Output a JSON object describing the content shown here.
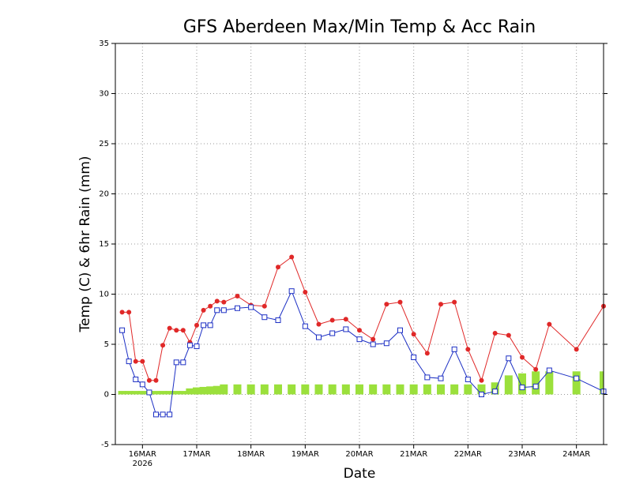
{
  "chart_data": {
    "type": "line",
    "title": "GFS Aberdeen Max/Min Temp & Acc Rain",
    "ylabel": "Temp (C) & 6hr Rain (mm)",
    "xlabel": "Date",
    "x_sublabel": "2026",
    "x": [
      -0.375,
      -0.25,
      -0.125,
      0,
      0.125,
      0.25,
      0.375,
      0.5,
      0.625,
      0.75,
      0.875,
      1,
      1.125,
      1.25,
      1.375,
      1.5,
      1.75,
      2,
      2.25,
      2.5,
      2.75,
      3,
      3.25,
      3.5,
      3.75,
      4,
      4.25,
      4.5,
      4.75,
      5,
      5.25,
      5.5,
      5.75,
      6,
      6.25,
      6.5,
      6.75,
      7,
      7.25,
      7.5,
      8,
      8.5
    ],
    "series": [
      {
        "style": "bar",
        "color": "#9be03c",
        "values": [
          0.35,
          0.35,
          0.35,
          0.35,
          0.35,
          0.35,
          0.35,
          0.35,
          0.35,
          0.35,
          0.6,
          0.7,
          0.75,
          0.8,
          0.85,
          1.0,
          1.0,
          1.0,
          1.0,
          1.0,
          1.0,
          1.0,
          1.0,
          1.0,
          1.0,
          1.0,
          1.0,
          1.0,
          1.0,
          1.0,
          1.0,
          1.0,
          1.0,
          1.0,
          1.0,
          1.2,
          1.9,
          2.1,
          2.3,
          2.3,
          2.3,
          2.3
        ]
      },
      {
        "style": "line",
        "marker": "circle",
        "color": "#e02828",
        "values": [
          8.2,
          8.2,
          3.3,
          3.3,
          1.4,
          1.4,
          4.9,
          6.6,
          6.4,
          6.4,
          5.2,
          6.9,
          8.4,
          8.8,
          9.3,
          9.2,
          9.8,
          8.9,
          8.8,
          12.7,
          13.7,
          10.2,
          7.0,
          7.4,
          7.5,
          6.4,
          5.5,
          9.0,
          9.2,
          6.0,
          4.1,
          9.0,
          9.2,
          4.5,
          1.4,
          6.1,
          5.9,
          3.7,
          2.5,
          7.0,
          4.5,
          8.8
        ]
      },
      {
        "style": "line",
        "marker": "square",
        "color": "#1c2fc4",
        "values": [
          6.4,
          3.3,
          1.5,
          1.0,
          0.2,
          -2.0,
          -2.0,
          -2.0,
          3.2,
          3.2,
          4.9,
          4.8,
          6.9,
          6.9,
          8.4,
          8.4,
          8.6,
          8.7,
          7.7,
          7.4,
          10.3,
          6.8,
          5.7,
          6.1,
          6.5,
          5.5,
          5.0,
          5.1,
          6.4,
          3.7,
          1.7,
          1.6,
          4.5,
          1.5,
          0.0,
          0.3,
          3.6,
          0.7,
          0.8,
          2.4,
          1.6,
          0.3
        ]
      }
    ],
    "xlim": [
      -0.5,
      8.5
    ],
    "xticks": [
      {
        "value": 0,
        "label": "16MAR"
      },
      {
        "value": 1,
        "label": "17MAR"
      },
      {
        "value": 2,
        "label": "18MAR"
      },
      {
        "value": 3,
        "label": "19MAR"
      },
      {
        "value": 4,
        "label": "20MAR"
      },
      {
        "value": 5,
        "label": "21MAR"
      },
      {
        "value": 6,
        "label": "22MAR"
      },
      {
        "value": 7,
        "label": "23MAR"
      },
      {
        "value": 8,
        "label": "24MAR"
      }
    ],
    "ylim": [
      -5,
      35
    ],
    "yticks": [
      -5,
      0,
      5,
      10,
      15,
      20,
      25,
      30,
      35
    ],
    "grid": true
  }
}
